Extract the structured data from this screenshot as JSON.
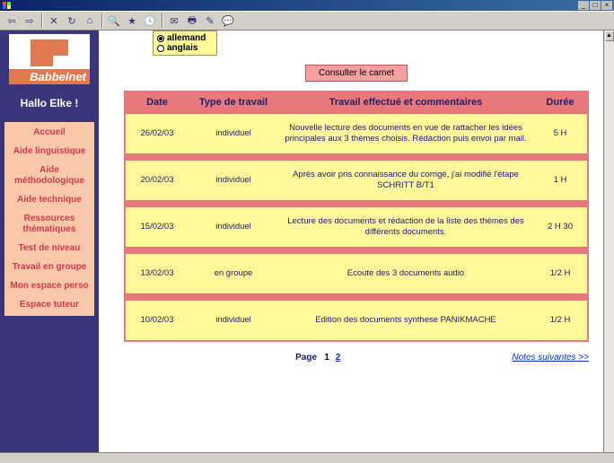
{
  "window": {
    "bg_color": "#3a367a"
  },
  "toolbar": {
    "icons": [
      "back",
      "forward",
      "stop",
      "refresh",
      "home",
      "search",
      "favorites",
      "history",
      "mail",
      "print",
      "edit",
      "discuss"
    ]
  },
  "sidebar": {
    "logo_text": "Babbelnet",
    "greeting": "Hallo Elke !",
    "menu": [
      "Accueil",
      "Aide linguistique",
      "Aide méthodologique",
      "Aide technique",
      "Ressources thématiques",
      "Test de niveau",
      "Travail en groupe",
      "Mon espace perso",
      "Espace tuteur"
    ]
  },
  "language_box": {
    "options": [
      "allemand",
      "anglais"
    ],
    "selected": "allemand"
  },
  "consult_button": "Consulter le carnet",
  "table": {
    "headers": {
      "date": "Date",
      "type": "Type de travail",
      "work": "Travail effectué et commentaires",
      "duration": "Durée"
    },
    "header_bg": "#e8787a",
    "row_bg": "#fff89a",
    "text_color": "#20206a",
    "rows": [
      {
        "date": "26/02/03",
        "type": "individuel",
        "work": "Nouvelle lecture des documents en vue de rattacher les idées principales aux 3 thèmes choisis. Rédaction puis envoi par mail.",
        "duration": "5 H"
      },
      {
        "date": "20/02/03",
        "type": "individuel",
        "work": "Après avoir pris connaissance du corrigé, j'ai modifié l'étape SCHRITT B/T1",
        "duration": "1 H"
      },
      {
        "date": "15/02/03",
        "type": "individuel",
        "work": "Lecture des documents et rédaction de la liste des thèmes des différents documents.",
        "duration": "2 H 30"
      },
      {
        "date": "13/02/03",
        "type": "en groupe",
        "work": "Ecoute des 3 documents audio",
        "duration": "1/2 H"
      },
      {
        "date": "10/02/03",
        "type": "individuel",
        "work": "Edition des documents synthese PANIKMACHE",
        "duration": "1/2 H"
      }
    ]
  },
  "pager": {
    "label": "Page",
    "current": "1",
    "other": "2",
    "next_label": "Notes suivantes >>"
  }
}
